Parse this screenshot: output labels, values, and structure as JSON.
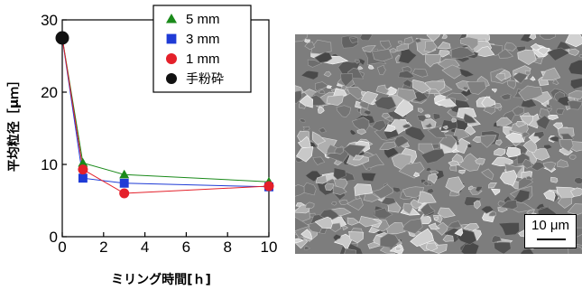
{
  "chart_data": {
    "type": "line",
    "xlabel": "ミリング時間[ｈ]",
    "ylabel": "平均粒径［μｍ］",
    "xlim": [
      0,
      10
    ],
    "ylim": [
      0,
      30
    ],
    "x_ticks": [
      "0",
      "2",
      "4",
      "6",
      "8",
      "10"
    ],
    "y_ticks": [
      "0",
      "10",
      "20",
      "30"
    ],
    "legend_position": "top-right",
    "series": [
      {
        "name": "5 mm",
        "marker": "triangle",
        "color": "#1a8a1a",
        "points": [
          [
            0,
            27.5
          ],
          [
            1,
            10.2
          ],
          [
            3,
            8.6
          ],
          [
            10,
            7.6
          ]
        ]
      },
      {
        "name": "3 mm",
        "marker": "square",
        "color": "#1f3bd6",
        "points": [
          [
            0,
            27.5
          ],
          [
            1,
            8.1
          ],
          [
            3,
            7.4
          ],
          [
            10,
            6.9
          ]
        ]
      },
      {
        "name": "1 mm",
        "marker": "circle",
        "color": "#e4202a",
        "points": [
          [
            0,
            27.5
          ],
          [
            1,
            9.3
          ],
          [
            3,
            6.0
          ],
          [
            10,
            7.0
          ]
        ]
      },
      {
        "name": "手粉砕",
        "marker": "circle",
        "color": "#111111",
        "points": [
          [
            0,
            27.5
          ]
        ]
      }
    ]
  },
  "sem": {
    "scale_label": "10 μm"
  }
}
